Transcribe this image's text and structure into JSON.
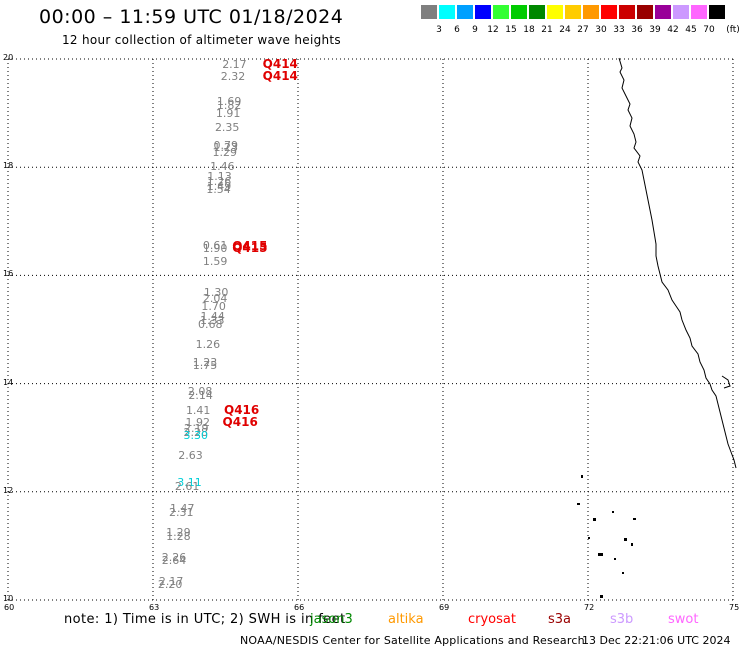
{
  "title": "00:00 – 11:59 UTC 01/18/2024",
  "subtitle": "12 hour collection of altimeter wave heights",
  "legend": {
    "unit": "(ft)",
    "colors": [
      "#7f7f7f",
      "#00ffff",
      "#00a0ff",
      "#0000ff",
      "#33ff33",
      "#00cc00",
      "#008800",
      "#ffff00",
      "#ffcc00",
      "#ff9900",
      "#ff0000",
      "#cc0000",
      "#990000",
      "#990099",
      "#cc99ff",
      "#ff66ff",
      "#000000"
    ],
    "labels": [
      "3",
      "6",
      "9",
      "12",
      "15",
      "18",
      "21",
      "24",
      "27",
      "30",
      "33",
      "36",
      "39",
      "42",
      "45",
      "70"
    ]
  },
  "axes": {
    "x_ticks": [
      "60",
      "63",
      "66",
      "69",
      "72",
      "75"
    ],
    "y_ticks": [
      "20",
      "18",
      "16",
      "14",
      "12",
      "10"
    ]
  },
  "chart_data": {
    "type": "scatter",
    "title": "00:00 – 11:59 UTC 01/18/2024",
    "xlim": [
      60,
      75
    ],
    "ylim": [
      10,
      20
    ],
    "grid": true,
    "unit": "ft",
    "points": [
      {
        "x": 64.68,
        "y": 19.89,
        "value": "2.17"
      },
      {
        "x": 64.65,
        "y": 19.67,
        "value": "2.32"
      },
      {
        "x": 64.57,
        "y": 19.21,
        "value": "1.69"
      },
      {
        "x": 64.57,
        "y": 19.13,
        "value": "1.82"
      },
      {
        "x": 64.55,
        "y": 18.99,
        "value": "1.91"
      },
      {
        "x": 64.53,
        "y": 18.72,
        "value": "2.35"
      },
      {
        "x": 64.5,
        "y": 18.4,
        "value": "0.79"
      },
      {
        "x": 64.5,
        "y": 18.35,
        "value": "1.23"
      },
      {
        "x": 64.48,
        "y": 18.27,
        "value": "1.29"
      },
      {
        "x": 64.43,
        "y": 18.0,
        "value": "1.46"
      },
      {
        "x": 64.37,
        "y": 17.82,
        "value": "1.13"
      },
      {
        "x": 64.36,
        "y": 17.72,
        "value": "1.26"
      },
      {
        "x": 64.36,
        "y": 17.64,
        "value": "1.49"
      },
      {
        "x": 64.35,
        "y": 17.57,
        "value": "1.54"
      },
      {
        "x": 64.28,
        "y": 16.54,
        "value": "0.61"
      },
      {
        "x": 64.28,
        "y": 16.49,
        "value": "1.90"
      },
      {
        "x": 64.28,
        "y": 16.24,
        "value": "1.59"
      },
      {
        "x": 64.3,
        "y": 15.67,
        "value": "1.30"
      },
      {
        "x": 64.28,
        "y": 15.57,
        "value": "2.04"
      },
      {
        "x": 64.25,
        "y": 15.41,
        "value": "1.70"
      },
      {
        "x": 64.23,
        "y": 15.23,
        "value": "1.44"
      },
      {
        "x": 64.22,
        "y": 15.16,
        "value": "1.33"
      },
      {
        "x": 64.18,
        "y": 15.08,
        "value": "0.68"
      },
      {
        "x": 64.13,
        "y": 14.72,
        "value": "1.26"
      },
      {
        "x": 64.07,
        "y": 14.39,
        "value": "1.23"
      },
      {
        "x": 64.07,
        "y": 14.32,
        "value": "1.75"
      },
      {
        "x": 63.97,
        "y": 13.84,
        "value": "2.08"
      },
      {
        "x": 63.98,
        "y": 13.77,
        "value": "2.14"
      },
      {
        "x": 63.93,
        "y": 13.5,
        "value": "1.41"
      },
      {
        "x": 63.92,
        "y": 13.27,
        "value": "1.92"
      },
      {
        "x": 63.89,
        "y": 13.16,
        "value": "2.19"
      },
      {
        "x": 63.88,
        "y": 13.09,
        "value": "2.28"
      },
      {
        "x": 63.88,
        "y": 13.03,
        "value": "3.30",
        "highlight": "cyan"
      },
      {
        "x": 63.77,
        "y": 12.66,
        "value": "2.63"
      },
      {
        "x": 63.75,
        "y": 12.17,
        "value": "3.11",
        "highlight": "cyan"
      },
      {
        "x": 63.7,
        "y": 12.08,
        "value": "2.61"
      },
      {
        "x": 63.6,
        "y": 11.68,
        "value": "1.47"
      },
      {
        "x": 63.58,
        "y": 11.61,
        "value": "2.31"
      },
      {
        "x": 63.52,
        "y": 11.23,
        "value": "1.29"
      },
      {
        "x": 63.52,
        "y": 11.16,
        "value": "1.28"
      },
      {
        "x": 63.43,
        "y": 10.78,
        "value": "2.26"
      },
      {
        "x": 63.43,
        "y": 10.72,
        "value": "2.64"
      },
      {
        "x": 63.37,
        "y": 10.33,
        "value": "2.17"
      },
      {
        "x": 63.35,
        "y": 10.27,
        "value": "2.20"
      }
    ],
    "cyclone_labels": [
      {
        "x": 65.6,
        "y": 19.9,
        "text": "Q414"
      },
      {
        "x": 65.6,
        "y": 19.68,
        "text": "Q414"
      },
      {
        "x": 64.97,
        "y": 16.55,
        "text": "Q415"
      },
      {
        "x": 64.97,
        "y": 16.5,
        "text": "Q415"
      },
      {
        "x": 64.8,
        "y": 13.52,
        "text": "Q416"
      },
      {
        "x": 64.77,
        "y": 13.29,
        "text": "Q416"
      }
    ]
  },
  "footer": {
    "note": "note:  1) Time is in UTC;  2) SWH is in feet",
    "satellites": [
      {
        "name": "jason3",
        "color": "#008800"
      },
      {
        "name": "altika",
        "color": "#ff9900"
      },
      {
        "name": "cryosat",
        "color": "#ff0000"
      },
      {
        "name": "s3a",
        "color": "#990000"
      },
      {
        "name": "s3b",
        "color": "#cc99ff"
      },
      {
        "name": "swot",
        "color": "#ff66ff"
      }
    ],
    "credit": "NOAA/NESDIS Center for Satellite Applications and Research",
    "timestamp": "13 Dec 22:21:06 UTC 2024"
  }
}
